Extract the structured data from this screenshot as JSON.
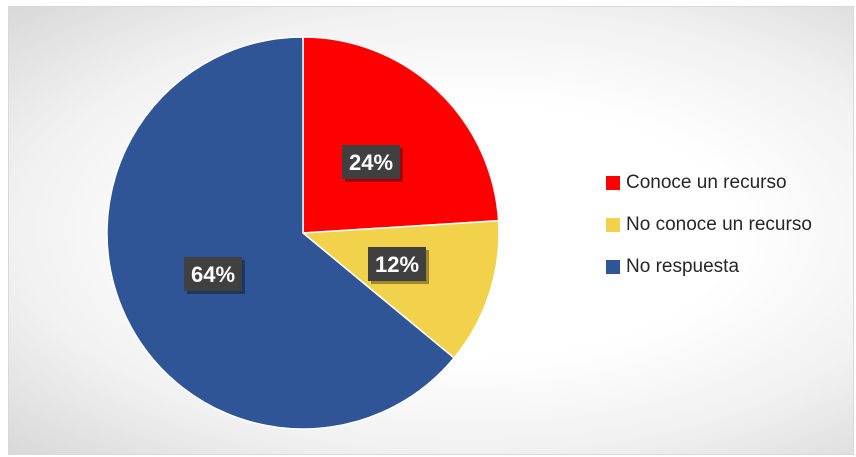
{
  "chart_data": {
    "type": "pie",
    "title": "",
    "slices": [
      {
        "label": "Conoce un recurso",
        "value": 24,
        "value_label": "24%",
        "color": "#ff0000"
      },
      {
        "label": "No conoce un recurso",
        "value": 12,
        "value_label": "12%",
        "color": "#f2d24b"
      },
      {
        "label": "No respuesta",
        "value": 64,
        "value_label": "64%",
        "color": "#2f5597"
      }
    ],
    "legend_position": "right",
    "start_angle": "12 o'clock, clockwise"
  }
}
